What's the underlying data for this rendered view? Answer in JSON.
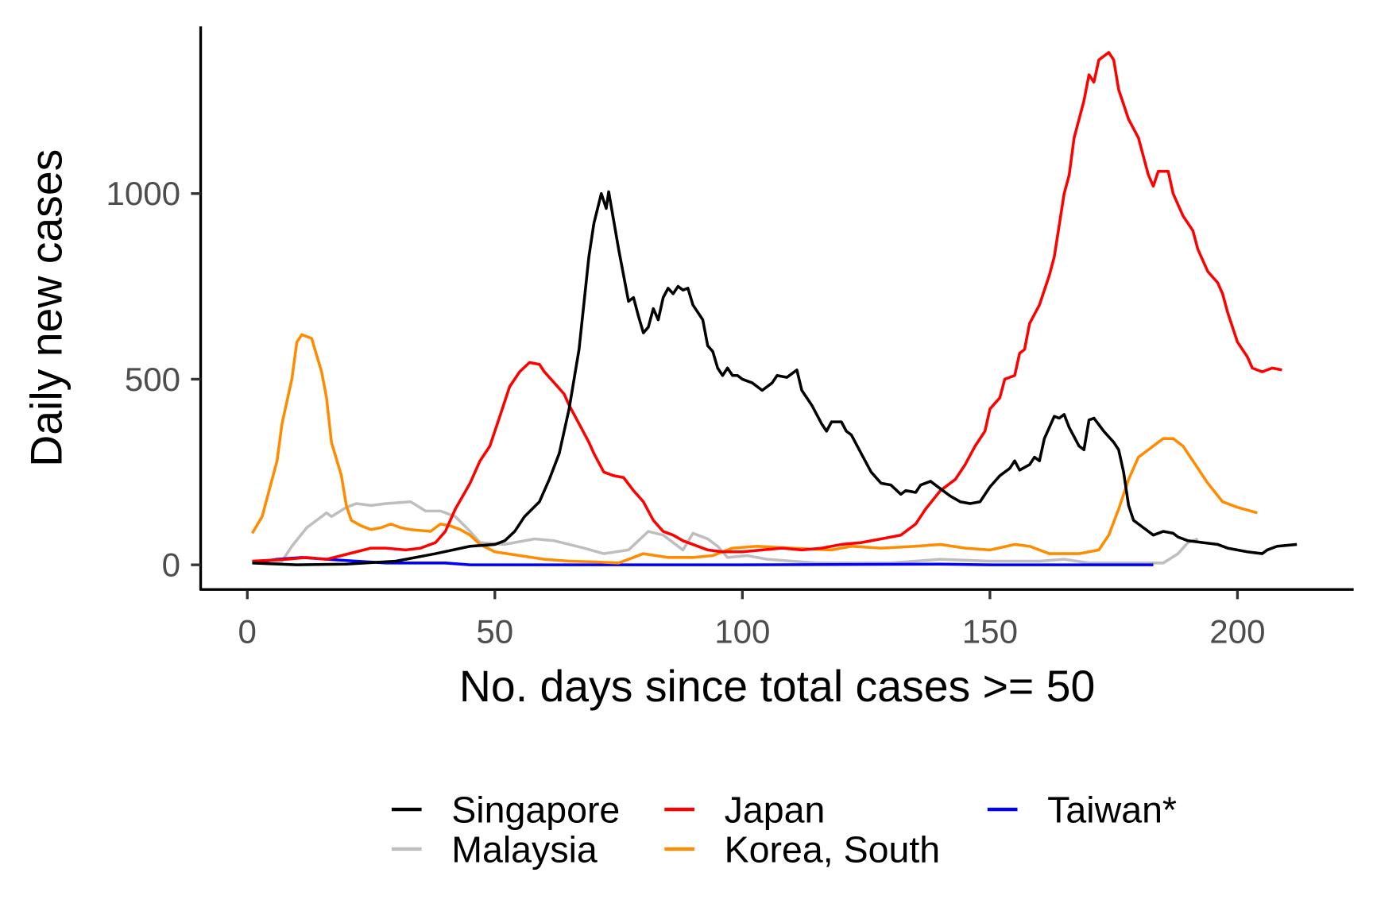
{
  "chart_data": {
    "type": "line",
    "xlabel": "No. days since total cases >= 50",
    "ylabel": "Daily new cases",
    "xlim": [
      -9,
      223
    ],
    "ylim": [
      -65,
      1450
    ],
    "xticks": [
      0,
      50,
      100,
      150,
      200
    ],
    "yticks": [
      0,
      500,
      1000
    ],
    "grid": false,
    "legend_position": "bottom",
    "series": [
      {
        "name": "Singapore",
        "color": "#000000",
        "points": [
          [
            1,
            5
          ],
          [
            10,
            0
          ],
          [
            20,
            2
          ],
          [
            30,
            10
          ],
          [
            38,
            30
          ],
          [
            45,
            50
          ],
          [
            50,
            55
          ],
          [
            52,
            65
          ],
          [
            54,
            90
          ],
          [
            56,
            130
          ],
          [
            59,
            170
          ],
          [
            61,
            230
          ],
          [
            63,
            300
          ],
          [
            65,
            420
          ],
          [
            67,
            580
          ],
          [
            69,
            830
          ],
          [
            70,
            920
          ],
          [
            71.5,
            1000
          ],
          [
            72.5,
            960
          ],
          [
            73,
            1005
          ],
          [
            75,
            850
          ],
          [
            76,
            780
          ],
          [
            77,
            710
          ],
          [
            78,
            720
          ],
          [
            79,
            670
          ],
          [
            80,
            625
          ],
          [
            81,
            640
          ],
          [
            82,
            690
          ],
          [
            83,
            660
          ],
          [
            84,
            720
          ],
          [
            85,
            745
          ],
          [
            86,
            730
          ],
          [
            87,
            750
          ],
          [
            88,
            740
          ],
          [
            89,
            745
          ],
          [
            90,
            700
          ],
          [
            92,
            660
          ],
          [
            93,
            590
          ],
          [
            94,
            575
          ],
          [
            95,
            530
          ],
          [
            96,
            510
          ],
          [
            97,
            530
          ],
          [
            98,
            510
          ],
          [
            99,
            510
          ],
          [
            100,
            500
          ],
          [
            102,
            490
          ],
          [
            104,
            470
          ],
          [
            106,
            490
          ],
          [
            107,
            510
          ],
          [
            109,
            505
          ],
          [
            111,
            525
          ],
          [
            112,
            470
          ],
          [
            114,
            430
          ],
          [
            116,
            380
          ],
          [
            117,
            360
          ],
          [
            118,
            385
          ],
          [
            120,
            385
          ],
          [
            121,
            360
          ],
          [
            122,
            350
          ],
          [
            124,
            300
          ],
          [
            126,
            250
          ],
          [
            128,
            220
          ],
          [
            130,
            215
          ],
          [
            132,
            190
          ],
          [
            133,
            200
          ],
          [
            135,
            195
          ],
          [
            136,
            215
          ],
          [
            138,
            225
          ],
          [
            139,
            215
          ],
          [
            141,
            195
          ],
          [
            142,
            185
          ],
          [
            144,
            170
          ],
          [
            146,
            165
          ],
          [
            148,
            170
          ],
          [
            150,
            210
          ],
          [
            152,
            240
          ],
          [
            154,
            260
          ],
          [
            155,
            280
          ],
          [
            156,
            255
          ],
          [
            158,
            270
          ],
          [
            159,
            290
          ],
          [
            160,
            280
          ],
          [
            161,
            340
          ],
          [
            163,
            400
          ],
          [
            164,
            395
          ],
          [
            165,
            405
          ],
          [
            166,
            370
          ],
          [
            168,
            320
          ],
          [
            169,
            310
          ],
          [
            170,
            390
          ],
          [
            171,
            395
          ],
          [
            173,
            360
          ],
          [
            175,
            330
          ],
          [
            176,
            310
          ],
          [
            177,
            250
          ],
          [
            178,
            160
          ],
          [
            179,
            120
          ],
          [
            181,
            100
          ],
          [
            183,
            80
          ],
          [
            185,
            90
          ],
          [
            187,
            85
          ],
          [
            188,
            75
          ],
          [
            190,
            65
          ],
          [
            193,
            60
          ],
          [
            196,
            55
          ],
          [
            198,
            45
          ],
          [
            202,
            35
          ],
          [
            205,
            30
          ],
          [
            206,
            40
          ],
          [
            208,
            50
          ],
          [
            212,
            55
          ]
        ]
      },
      {
        "name": "Malaysia",
        "color": "#bebebe",
        "points": [
          [
            1,
            5
          ],
          [
            7,
            10
          ],
          [
            9,
            50
          ],
          [
            12,
            100
          ],
          [
            16,
            140
          ],
          [
            17,
            130
          ],
          [
            20,
            155
          ],
          [
            22,
            165
          ],
          [
            25,
            160
          ],
          [
            28,
            165
          ],
          [
            33,
            170
          ],
          [
            36,
            145
          ],
          [
            39,
            145
          ],
          [
            42,
            130
          ],
          [
            45,
            90
          ],
          [
            47,
            60
          ],
          [
            52,
            55
          ],
          [
            58,
            70
          ],
          [
            62,
            65
          ],
          [
            68,
            45
          ],
          [
            72,
            30
          ],
          [
            77,
            40
          ],
          [
            81,
            90
          ],
          [
            84,
            80
          ],
          [
            88,
            40
          ],
          [
            90,
            85
          ],
          [
            93,
            70
          ],
          [
            95,
            50
          ],
          [
            97,
            20
          ],
          [
            101,
            25
          ],
          [
            105,
            15
          ],
          [
            115,
            5
          ],
          [
            130,
            5
          ],
          [
            140,
            15
          ],
          [
            150,
            10
          ],
          [
            160,
            10
          ],
          [
            165,
            15
          ],
          [
            170,
            5
          ],
          [
            185,
            5
          ],
          [
            188,
            30
          ],
          [
            190,
            60
          ],
          [
            192,
            70
          ]
        ]
      },
      {
        "name": "Japan",
        "color": "#ff0000",
        "points": [
          [
            1,
            10
          ],
          [
            8,
            15
          ],
          [
            12,
            20
          ],
          [
            16,
            15
          ],
          [
            19,
            25
          ],
          [
            22,
            35
          ],
          [
            25,
            45
          ],
          [
            28,
            45
          ],
          [
            32,
            40
          ],
          [
            35,
            45
          ],
          [
            38,
            60
          ],
          [
            40,
            90
          ],
          [
            42,
            150
          ],
          [
            45,
            220
          ],
          [
            47,
            280
          ],
          [
            49,
            320
          ],
          [
            51,
            400
          ],
          [
            53,
            480
          ],
          [
            55,
            520
          ],
          [
            57,
            545
          ],
          [
            59,
            540
          ],
          [
            60,
            520
          ],
          [
            62,
            490
          ],
          [
            64,
            460
          ],
          [
            65,
            430
          ],
          [
            67,
            380
          ],
          [
            69,
            330
          ],
          [
            70,
            300
          ],
          [
            72,
            250
          ],
          [
            74,
            240
          ],
          [
            76,
            235
          ],
          [
            78,
            200
          ],
          [
            80,
            170
          ],
          [
            82,
            120
          ],
          [
            84,
            90
          ],
          [
            86,
            80
          ],
          [
            88,
            65
          ],
          [
            90,
            55
          ],
          [
            93,
            40
          ],
          [
            96,
            35
          ],
          [
            100,
            35
          ],
          [
            104,
            40
          ],
          [
            108,
            45
          ],
          [
            112,
            40
          ],
          [
            116,
            45
          ],
          [
            120,
            55
          ],
          [
            124,
            60
          ],
          [
            128,
            70
          ],
          [
            132,
            80
          ],
          [
            135,
            110
          ],
          [
            137,
            150
          ],
          [
            140,
            200
          ],
          [
            143,
            230
          ],
          [
            145,
            270
          ],
          [
            147,
            320
          ],
          [
            149,
            360
          ],
          [
            150,
            420
          ],
          [
            152,
            450
          ],
          [
            153,
            500
          ],
          [
            155,
            510
          ],
          [
            156,
            570
          ],
          [
            157,
            580
          ],
          [
            158,
            650
          ],
          [
            160,
            700
          ],
          [
            162,
            780
          ],
          [
            163,
            830
          ],
          [
            165,
            1000
          ],
          [
            166,
            1050
          ],
          [
            167,
            1150
          ],
          [
            169,
            1250
          ],
          [
            170,
            1320
          ],
          [
            171,
            1300
          ],
          [
            172,
            1360
          ],
          [
            174,
            1380
          ],
          [
            175,
            1360
          ],
          [
            176,
            1280
          ],
          [
            178,
            1200
          ],
          [
            180,
            1150
          ],
          [
            182,
            1050
          ],
          [
            183,
            1020
          ],
          [
            184,
            1060
          ],
          [
            186,
            1060
          ],
          [
            187,
            1000
          ],
          [
            189,
            940
          ],
          [
            191,
            900
          ],
          [
            192,
            850
          ],
          [
            194,
            790
          ],
          [
            196,
            760
          ],
          [
            197,
            730
          ],
          [
            198,
            680
          ],
          [
            200,
            600
          ],
          [
            202,
            560
          ],
          [
            203,
            530
          ],
          [
            205,
            520
          ],
          [
            207,
            530
          ],
          [
            209,
            525
          ]
        ]
      },
      {
        "name": "Korea, South",
        "color": "#ff8c00",
        "points": [
          [
            1,
            85
          ],
          [
            3,
            130
          ],
          [
            4,
            180
          ],
          [
            6,
            280
          ],
          [
            7,
            380
          ],
          [
            9,
            500
          ],
          [
            10,
            600
          ],
          [
            11,
            620
          ],
          [
            13,
            610
          ],
          [
            15,
            520
          ],
          [
            16,
            450
          ],
          [
            17,
            330
          ],
          [
            19,
            240
          ],
          [
            20,
            160
          ],
          [
            21,
            120
          ],
          [
            23,
            105
          ],
          [
            25,
            95
          ],
          [
            27,
            100
          ],
          [
            29,
            110
          ],
          [
            31,
            100
          ],
          [
            33,
            95
          ],
          [
            37,
            90
          ],
          [
            39,
            110
          ],
          [
            41,
            105
          ],
          [
            43,
            95
          ],
          [
            45,
            80
          ],
          [
            47,
            55
          ],
          [
            50,
            35
          ],
          [
            55,
            25
          ],
          [
            60,
            15
          ],
          [
            65,
            10
          ],
          [
            70,
            8
          ],
          [
            75,
            5
          ],
          [
            78,
            20
          ],
          [
            80,
            30
          ],
          [
            85,
            20
          ],
          [
            90,
            20
          ],
          [
            94,
            25
          ],
          [
            96,
            35
          ],
          [
            98,
            45
          ],
          [
            103,
            50
          ],
          [
            110,
            45
          ],
          [
            118,
            40
          ],
          [
            122,
            50
          ],
          [
            128,
            45
          ],
          [
            135,
            50
          ],
          [
            140,
            55
          ],
          [
            145,
            45
          ],
          [
            150,
            40
          ],
          [
            155,
            55
          ],
          [
            158,
            50
          ],
          [
            162,
            30
          ],
          [
            168,
            30
          ],
          [
            172,
            40
          ],
          [
            174,
            80
          ],
          [
            176,
            150
          ],
          [
            178,
            230
          ],
          [
            180,
            290
          ],
          [
            182,
            310
          ],
          [
            185,
            340
          ],
          [
            187,
            340
          ],
          [
            189,
            320
          ],
          [
            191,
            280
          ],
          [
            194,
            220
          ],
          [
            197,
            170
          ],
          [
            200,
            155
          ],
          [
            204,
            140
          ]
        ]
      },
      {
        "name": "Taiwan*",
        "color": "#0000ff",
        "points": [
          [
            1,
            5
          ],
          [
            6,
            15
          ],
          [
            11,
            20
          ],
          [
            16,
            15
          ],
          [
            22,
            10
          ],
          [
            28,
            5
          ],
          [
            40,
            5
          ],
          [
            45,
            0
          ],
          [
            100,
            0
          ],
          [
            140,
            2
          ],
          [
            150,
            0
          ],
          [
            183,
            0
          ]
        ]
      }
    ]
  }
}
